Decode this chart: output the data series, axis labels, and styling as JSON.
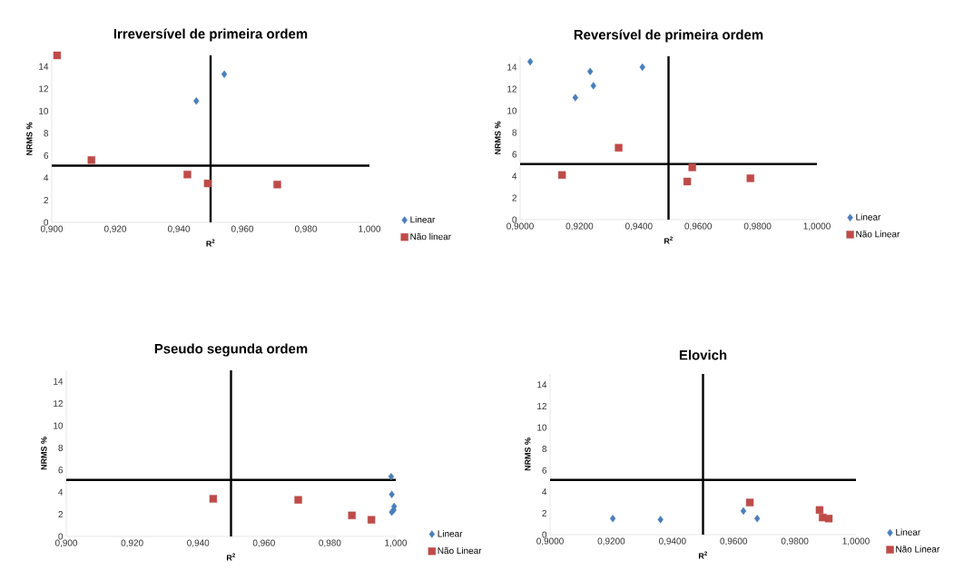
{
  "chart_data": [
    {
      "type": "scatter",
      "title": "Irreversível de primeira ordem",
      "xlabel": "R$^{2}$",
      "ylabel": "NRMS %",
      "xlim": [
        0.9,
        1.0
      ],
      "ylim": [
        0,
        15
      ],
      "xticks": [
        {
          "value": 0.9,
          "label": "0,900"
        },
        {
          "value": 0.92,
          "label": "0,920"
        },
        {
          "value": 0.94,
          "label": "0,940"
        },
        {
          "value": 0.96,
          "label": "0,960"
        },
        {
          "value": 0.98,
          "label": "0,980"
        },
        {
          "value": 1.0,
          "label": "1,000"
        }
      ],
      "yticks": [
        0,
        2,
        4,
        6,
        8,
        10,
        12,
        14
      ],
      "legend": "right",
      "ref_lines": [
        {
          "axis": "x",
          "value": 0.95,
          "color": "#000000"
        },
        {
          "axis": "y",
          "value": 5.1,
          "color": "#000000"
        }
      ],
      "series": [
        {
          "name": "Linear",
          "color": "#4a7ebb",
          "marker": "diamond",
          "x": [
            0.9455,
            0.9543
          ],
          "values": [
            10.9,
            13.3
          ]
        },
        {
          "name": "Não linear",
          "color": "#be4b48",
          "marker": "square",
          "x": [
            0.9017,
            0.9125,
            0.9427,
            0.9491,
            0.971
          ],
          "values": [
            15.0,
            5.6,
            4.3,
            3.5,
            3.4
          ]
        }
      ]
    },
    {
      "type": "scatter",
      "title": "Reversível de primeira ordem",
      "xlabel": "R$^{2}$",
      "ylabel": "NRMS %",
      "xlim": [
        0.9,
        1.0
      ],
      "ylim": [
        0,
        15
      ],
      "xticks": [
        {
          "value": 0.9,
          "label": "0,9000"
        },
        {
          "value": 0.92,
          "label": "0,9200"
        },
        {
          "value": 0.94,
          "label": "0,9400"
        },
        {
          "value": 0.96,
          "label": "0,9600"
        },
        {
          "value": 0.98,
          "label": "0,9800"
        },
        {
          "value": 1.0,
          "label": "1,0000"
        }
      ],
      "yticks": [
        0,
        2,
        4,
        6,
        8,
        10,
        12,
        14
      ],
      "legend": "right",
      "ref_lines": [
        {
          "axis": "x",
          "value": 0.95,
          "color": "#000000"
        },
        {
          "axis": "y",
          "value": 5.1,
          "color": "#000000"
        }
      ],
      "series": [
        {
          "name": "Linear",
          "color": "#4a7ebb",
          "marker": "diamond",
          "x": [
            0.9034,
            0.9186,
            0.9236,
            0.9247,
            0.9412
          ],
          "values": [
            14.5,
            11.2,
            13.6,
            12.3,
            14.0
          ]
        },
        {
          "name": "Não Linear",
          "color": "#be4b48",
          "marker": "square",
          "x": [
            0.9141,
            0.9332,
            0.9563,
            0.958,
            0.9776
          ],
          "values": [
            4.1,
            6.6,
            3.5,
            4.8,
            3.8
          ]
        }
      ]
    },
    {
      "type": "scatter",
      "title": "Pseudo segunda ordem",
      "xlabel": "R$^{2}$",
      "ylabel": "NRMS %",
      "xlim": [
        0.9,
        1.0
      ],
      "ylim": [
        0,
        15
      ],
      "xticks": [
        {
          "value": 0.9,
          "label": "0,900"
        },
        {
          "value": 0.92,
          "label": "0,920"
        },
        {
          "value": 0.94,
          "label": "0,940"
        },
        {
          "value": 0.96,
          "label": "0,960"
        },
        {
          "value": 0.98,
          "label": "0,980"
        },
        {
          "value": 1.0,
          "label": "1,000"
        }
      ],
      "yticks": [
        0,
        2,
        4,
        6,
        8,
        10,
        12,
        14
      ],
      "legend": "right",
      "ref_lines": [
        {
          "axis": "x",
          "value": 0.95,
          "color": "#000000"
        },
        {
          "axis": "y",
          "value": 5.1,
          "color": "#000000"
        }
      ],
      "series": [
        {
          "name": "Linear",
          "color": "#4a7ebb",
          "marker": "diamond",
          "x": [
            0.9986,
            0.9988,
            0.9995,
            0.9994,
            0.9988
          ],
          "values": [
            5.4,
            3.8,
            2.7,
            2.4,
            2.2
          ]
        },
        {
          "name": "Não Linear",
          "color": "#be4b48",
          "marker": "square",
          "x": [
            0.9446,
            0.9704,
            0.9867,
            0.9926
          ],
          "values": [
            3.4,
            3.3,
            1.9,
            1.5
          ]
        }
      ]
    },
    {
      "type": "scatter",
      "title": "Elovich",
      "xlabel": "R$^{2}$",
      "ylabel": "NRMS %",
      "xlim": [
        0.9,
        1.0
      ],
      "ylim": [
        0,
        15
      ],
      "xticks": [
        {
          "value": 0.9,
          "label": "0,9000"
        },
        {
          "value": 0.92,
          "label": "0,9200"
        },
        {
          "value": 0.94,
          "label": "0,9400"
        },
        {
          "value": 0.96,
          "label": "0,9600"
        },
        {
          "value": 0.98,
          "label": "0,9800"
        },
        {
          "value": 1.0,
          "label": "1,0000"
        }
      ],
      "yticks": [
        0,
        2,
        4,
        6,
        8,
        10,
        12,
        14
      ],
      "legend": "right",
      "ref_lines": [
        {
          "axis": "x",
          "value": 0.95,
          "color": "#000000"
        },
        {
          "axis": "y",
          "value": 5.1,
          "color": "#000000"
        }
      ],
      "series": [
        {
          "name": "Linear",
          "color": "#4a7ebb",
          "marker": "diamond",
          "x": [
            0.9205,
            0.9361,
            0.9632,
            0.9677
          ],
          "values": [
            1.5,
            1.4,
            2.2,
            1.5
          ]
        },
        {
          "name": "Não Linear",
          "color": "#be4b48",
          "marker": "square",
          "x": [
            0.9653,
            0.9881,
            0.9891,
            0.9911
          ],
          "values": [
            3.0,
            2.3,
            1.6,
            1.5
          ]
        }
      ]
    }
  ]
}
